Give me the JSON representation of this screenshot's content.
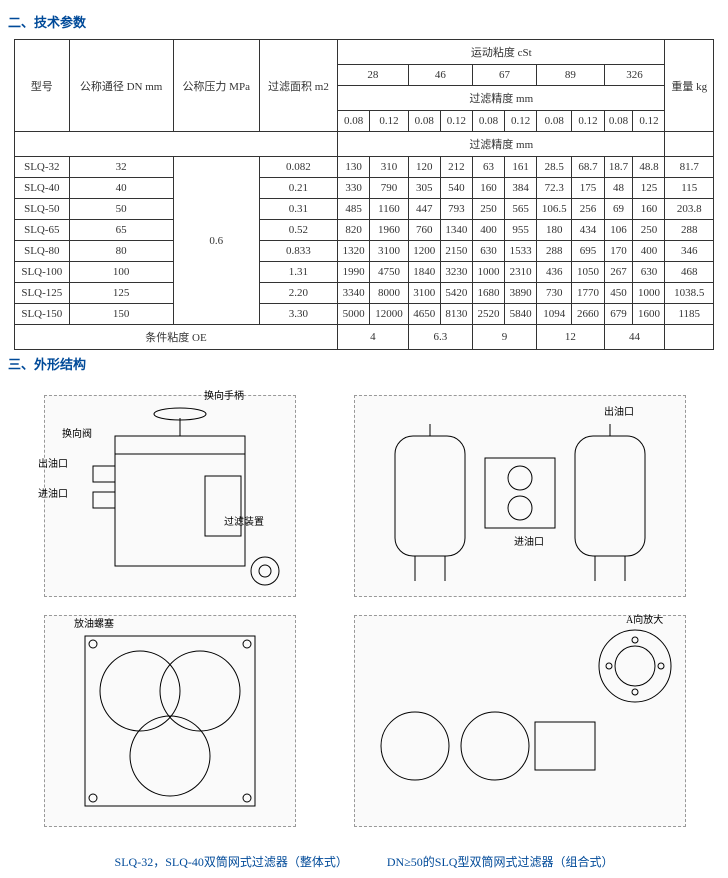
{
  "section1_title": "二、技术参数",
  "section2_title": "三、外形结构",
  "table": {
    "head": {
      "model": "型号",
      "dn": "公称通径 DN mm",
      "pressure": "公称压力 MPa",
      "area": "过滤面积 m2",
      "viscosity_cst": "运动粘度 cSt",
      "viscosity_vals": [
        "28",
        "46",
        "67",
        "89",
        "326"
      ],
      "precision": "过滤精度 mm",
      "precision_vals": [
        "0.08",
        "0.12",
        "0.08",
        "0.12",
        "0.08",
        "0.12",
        "0.08",
        "0.12",
        "0.08",
        "0.12"
      ],
      "precision2": "过滤精度 mm",
      "weight": "重量 kg"
    },
    "pressure_shared": "0.6",
    "rows": [
      {
        "m": "SLQ-32",
        "dn": "32",
        "area": "0.082",
        "v": [
          "130",
          "310",
          "120",
          "212",
          "63",
          "161",
          "28.5",
          "68.7",
          "18.7",
          "48.8"
        ],
        "w": "81.7"
      },
      {
        "m": "SLQ-40",
        "dn": "40",
        "area": "0.21",
        "v": [
          "330",
          "790",
          "305",
          "540",
          "160",
          "384",
          "72.3",
          "175",
          "48",
          "125"
        ],
        "w": "115"
      },
      {
        "m": "SLQ-50",
        "dn": "50",
        "area": "0.31",
        "v": [
          "485",
          "1160",
          "447",
          "793",
          "250",
          "565",
          "106.5",
          "256",
          "69",
          "160"
        ],
        "w": "203.8"
      },
      {
        "m": "SLQ-65",
        "dn": "65",
        "area": "0.52",
        "v": [
          "820",
          "1960",
          "760",
          "1340",
          "400",
          "955",
          "180",
          "434",
          "106",
          "250"
        ],
        "w": "288"
      },
      {
        "m": "SLQ-80",
        "dn": "80",
        "area": "0.833",
        "v": [
          "1320",
          "3100",
          "1200",
          "2150",
          "630",
          "1533",
          "288",
          "695",
          "170",
          "400"
        ],
        "w": "346"
      },
      {
        "m": "SLQ-100",
        "dn": "100",
        "area": "1.31",
        "v": [
          "1990",
          "4750",
          "1840",
          "3230",
          "1000",
          "2310",
          "436",
          "1050",
          "267",
          "630"
        ],
        "w": "468"
      },
      {
        "m": "SLQ-125",
        "dn": "125",
        "area": "2.20",
        "v": [
          "3340",
          "8000",
          "3100",
          "5420",
          "1680",
          "3890",
          "730",
          "1770",
          "450",
          "1000"
        ],
        "w": "1038.5"
      },
      {
        "m": "SLQ-150",
        "dn": "150",
        "area": "3.30",
        "v": [
          "5000",
          "12000",
          "4650",
          "8130",
          "2520",
          "5840",
          "1094",
          "2660",
          "679",
          "1600"
        ],
        "w": "1185"
      }
    ],
    "footer_label": "条件粘度 OE",
    "footer_vals": [
      "4",
      "6.3",
      "9",
      "12",
      "44"
    ]
  },
  "diagrams": {
    "labels": {
      "handle": "换向手柄",
      "valve": "换向阀",
      "outlet": "出油口",
      "inlet": "进油口",
      "filter_dev": "过滤装置",
      "drain": "放油螺塞",
      "a_enlarge": "A向放大"
    },
    "caption_left": "SLQ-32，SLQ-40双筒网式过滤器（整体式）",
    "caption_right": "DN≥50的SLQ型双筒网式过滤器（组合式）"
  }
}
